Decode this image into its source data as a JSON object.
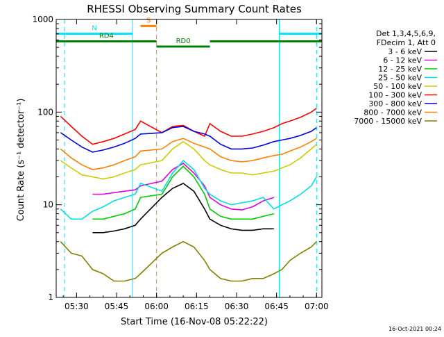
{
  "chart_data": {
    "type": "line",
    "title": "RHESSI Observing Summary Count Rates",
    "xlabel": "Start Time (16-Nov-08 05:22:22)",
    "ylabel": "Count Rate (s⁻¹ detector⁻¹)",
    "y_scale": "log",
    "ylim": [
      1,
      1000
    ],
    "xlim": [
      "05:22:22",
      "07:02:00"
    ],
    "x_ticks": [
      "05:30",
      "05:45",
      "06:00",
      "06:15",
      "06:30",
      "06:45",
      "07:00"
    ],
    "y_ticks": [
      "1",
      "10",
      "100",
      "1000"
    ],
    "legend": {
      "position": "right",
      "header": [
        "Det 1,3,4,5,6,9,",
        "FDecim 1, Att 0"
      ]
    },
    "x": [
      "05:24",
      "05:28",
      "05:32",
      "05:36",
      "05:40",
      "05:44",
      "05:48",
      "05:52",
      "05:54",
      "06:02",
      "06:06",
      "06:10",
      "06:14",
      "06:18",
      "06:20",
      "06:24",
      "06:28",
      "06:32",
      "06:36",
      "06:40",
      "06:44",
      "06:47",
      "06:50",
      "06:54",
      "06:58",
      "07:00"
    ],
    "series": [
      {
        "name": "3 - 6 keV",
        "color": "#000000",
        "values": [
          null,
          null,
          null,
          5,
          5,
          5.2,
          5.5,
          6,
          7,
          12,
          15,
          17,
          14,
          9,
          7,
          6,
          5.5,
          5.3,
          5.3,
          5.5,
          5.5,
          null,
          null,
          null,
          null,
          null
        ]
      },
      {
        "name": "6 - 12 keV",
        "color": "#e000e0",
        "values": [
          null,
          null,
          null,
          13,
          13,
          13.5,
          14,
          14.5,
          16,
          18,
          24,
          28,
          22,
          16,
          12,
          10,
          9,
          8.8,
          9.5,
          11,
          12,
          null,
          null,
          null,
          null,
          null
        ]
      },
      {
        "name": "12 - 25 keV",
        "color": "#00cc00",
        "values": [
          null,
          null,
          null,
          7,
          7,
          7.5,
          8,
          9,
          12,
          13,
          20,
          26,
          20,
          13,
          9,
          7.5,
          7,
          7,
          7,
          7.5,
          8,
          null,
          null,
          null,
          null,
          null
        ]
      },
      {
        "name": "25 - 50 keV",
        "color": "#00e0e0",
        "values": [
          9,
          7,
          7,
          8.5,
          9.5,
          11,
          12,
          13,
          17,
          14,
          22,
          30,
          24,
          15,
          13,
          11,
          10,
          10.5,
          11,
          12,
          9,
          10,
          11,
          13,
          16,
          20
        ]
      },
      {
        "name": "50 - 100 keV",
        "color": "#cccc00",
        "values": [
          30,
          25,
          21,
          20,
          19,
          20,
          22,
          24,
          27,
          30,
          40,
          48,
          40,
          30,
          27,
          24,
          22,
          22,
          21,
          22,
          23,
          25,
          27,
          32,
          40,
          45
        ]
      },
      {
        "name": "100 - 300 keV",
        "color": "#ff0000",
        "values": [
          90,
          70,
          55,
          45,
          48,
          52,
          58,
          65,
          80,
          60,
          70,
          72,
          62,
          55,
          75,
          62,
          55,
          55,
          58,
          62,
          68,
          75,
          80,
          88,
          100,
          110
        ]
      },
      {
        "name": "300 - 800 keV",
        "color": "#0000e0",
        "values": [
          60,
          50,
          42,
          37,
          39,
          42,
          46,
          52,
          58,
          60,
          68,
          70,
          62,
          58,
          55,
          45,
          40,
          40,
          41,
          44,
          48,
          50,
          52,
          56,
          62,
          68
        ]
      },
      {
        "name": "800 - 7000 keV",
        "color": "#ff8000",
        "values": [
          40,
          32,
          27,
          24,
          25,
          27,
          30,
          33,
          38,
          40,
          48,
          52,
          46,
          42,
          40,
          33,
          30,
          29,
          30,
          32,
          34,
          35,
          38,
          42,
          48,
          52
        ]
      },
      {
        "name": "7000 - 15000 keV",
        "color": "#808000",
        "values": [
          4,
          3,
          2.8,
          2,
          1.8,
          1.5,
          1.5,
          1.6,
          1.8,
          3,
          3.5,
          4,
          3.5,
          2.5,
          2,
          1.6,
          1.5,
          1.5,
          1.6,
          1.6,
          1.8,
          2,
          2.5,
          3,
          3.5,
          4
        ]
      }
    ],
    "annotations": [
      {
        "label": "N",
        "color": "#00e0ff",
        "type": "bar",
        "x_start": "05:22:22",
        "x_end": "05:51:00",
        "level": 700
      },
      {
        "label": "",
        "color": "#00e0ff",
        "type": "bar",
        "x_start": "06:46:00",
        "x_end": "07:02:00",
        "level": 700
      },
      {
        "label": "S",
        "color": "#ff8000",
        "type": "bar",
        "x_start": "05:54:00",
        "x_end": "06:00:00",
        "level": 850
      },
      {
        "label": "RD4",
        "color": "#008000",
        "type": "bar",
        "x_start": "05:22:22",
        "x_end": "06:00:00",
        "level": 580
      },
      {
        "label": "RD0",
        "color": "#008000",
        "type": "bar",
        "x_start": "06:00:00",
        "x_end": "06:20:00",
        "level": 510
      },
      {
        "label": "",
        "color": "#008000",
        "type": "bar",
        "x_start": "06:20:00",
        "x_end": "07:02:00",
        "level": 580
      }
    ],
    "vlines": [
      {
        "x": "05:25:30",
        "color": "#00e0ff",
        "style": "dashed"
      },
      {
        "x": "05:51:00",
        "color": "#00e0ff",
        "style": "solid"
      },
      {
        "x": "06:00:00",
        "color": "#ff8000",
        "style": "dashed"
      },
      {
        "x": "06:46:00",
        "color": "#00e0ff",
        "style": "solid"
      },
      {
        "x": "07:00:00",
        "color": "#00e0ff",
        "style": "dashed"
      }
    ],
    "grid": false
  },
  "footer": {
    "timestamp": "16-Oct-2021 00:24"
  }
}
